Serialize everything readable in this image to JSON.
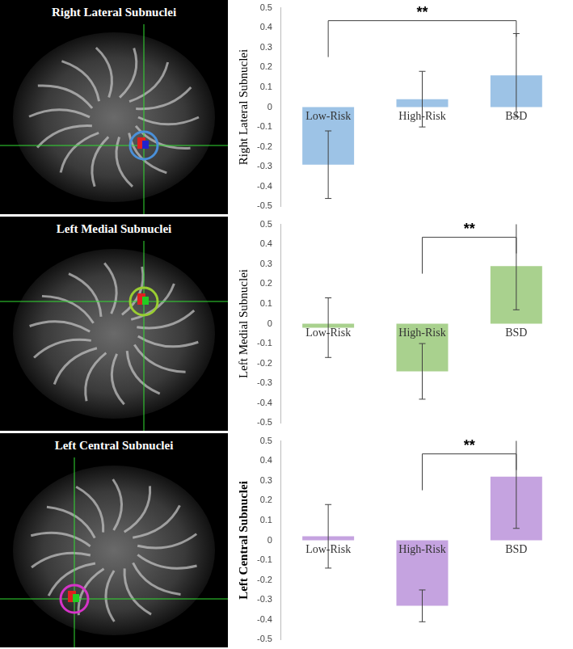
{
  "image_titles": [
    "Right Lateral Subnuclei",
    "Left Medial Subnuclei",
    "Left Central Subnuclei"
  ],
  "chart_data": [
    {
      "type": "bar",
      "y_label": "Right Lateral Subnuclei",
      "categories": [
        "Low-Risk",
        "High-Risk",
        "BSD"
      ],
      "values": [
        -0.29,
        0.04,
        0.16
      ],
      "errors": [
        0.17,
        0.14,
        0.21
      ],
      "color": "#9dc3e6",
      "ylim": [
        -0.5,
        0.5
      ],
      "yticks": [
        -0.5,
        -0.4,
        -0.3,
        -0.2,
        -0.1,
        0,
        0.1,
        0.2,
        0.3,
        0.4,
        0.5
      ],
      "grid": false,
      "legend": false,
      "annotations": [
        {
          "text": "**",
          "between": [
            "Low-Risk",
            "BSD"
          ]
        }
      ]
    },
    {
      "type": "bar",
      "y_label": "Left Medial Subnuclei",
      "categories": [
        "Low-Risk",
        "High-Risk",
        "BSD"
      ],
      "values": [
        -0.02,
        -0.24,
        0.29
      ],
      "errors": [
        0.15,
        0.14,
        0.22
      ],
      "color": "#a9d18e",
      "ylim": [
        -0.5,
        0.5
      ],
      "yticks": [
        -0.5,
        -0.4,
        -0.3,
        -0.2,
        -0.1,
        0,
        0.1,
        0.2,
        0.3,
        0.4,
        0.5
      ],
      "grid": false,
      "legend": false,
      "annotations": [
        {
          "text": "**",
          "between": [
            "High-Risk",
            "BSD"
          ]
        }
      ]
    },
    {
      "type": "bar",
      "y_label": "Left Central Subnuclei",
      "categories": [
        "Low-Risk",
        "High-Risk",
        "BSD"
      ],
      "values": [
        0.02,
        -0.33,
        0.32
      ],
      "errors": [
        0.16,
        0.08,
        0.26
      ],
      "color": "#c5a3e0",
      "ylim": [
        -0.5,
        0.5
      ],
      "yticks": [
        -0.5,
        -0.4,
        -0.3,
        -0.2,
        -0.1,
        0,
        0.1,
        0.2,
        0.3,
        0.4,
        0.5
      ],
      "grid": false,
      "legend": false,
      "annotations": [
        {
          "text": "**",
          "between": [
            "High-Risk",
            "BSD"
          ]
        }
      ]
    }
  ]
}
